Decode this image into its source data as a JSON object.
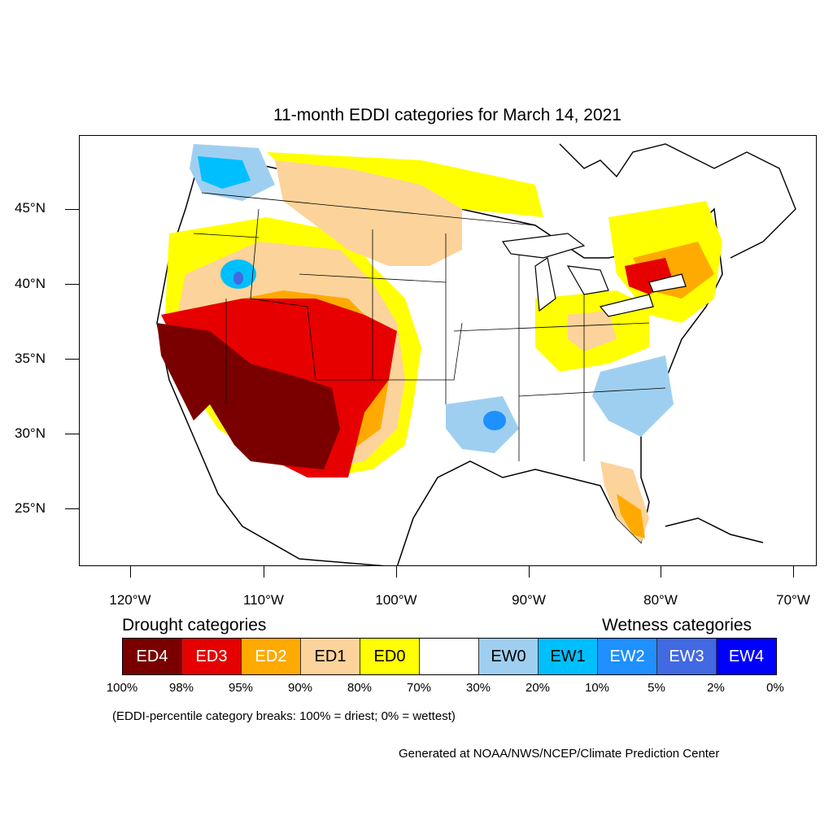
{
  "title": "11-month EDDI categories for March 14, 2021",
  "latitude_labels": [
    "45°N",
    "40°N",
    "35°N",
    "30°N",
    "25°N"
  ],
  "longitude_labels": [
    "120°W",
    "110°W",
    "100°W",
    "90°W",
    "80°W",
    "70°W"
  ],
  "legend": {
    "drought_heading": "Drought categories",
    "wetness_heading": "Wetness categories",
    "categories": [
      {
        "label": "ED4",
        "color": "#7a0000",
        "text_color": "#ffffff"
      },
      {
        "label": "ED3",
        "color": "#e60000",
        "text_color": "#ffffff"
      },
      {
        "label": "ED2",
        "color": "#ffaa00",
        "text_color": "#ffffff"
      },
      {
        "label": "ED1",
        "color": "#fcd39a",
        "text_color": "#000000"
      },
      {
        "label": "ED0",
        "color": "#ffff00",
        "text_color": "#000000"
      },
      {
        "label": "",
        "color": "#ffffff",
        "text_color": "#000000"
      },
      {
        "label": "EW0",
        "color": "#9fcff0",
        "text_color": "#000000"
      },
      {
        "label": "EW1",
        "color": "#00bfff",
        "text_color": "#000000"
      },
      {
        "label": "EW2",
        "color": "#1e90ff",
        "text_color": "#ffffff"
      },
      {
        "label": "EW3",
        "color": "#4169e1",
        "text_color": "#ffffff"
      },
      {
        "label": "EW4",
        "color": "#0000ff",
        "text_color": "#ffffff"
      }
    ],
    "percent_breaks": [
      "100%",
      "98%",
      "95%",
      "90%",
      "80%",
      "70%",
      "30%",
      "20%",
      "10%",
      "5%",
      "2%",
      "0%"
    ],
    "note": "(EDDI-percentile category breaks: 100% = driest; 0% = wettest)"
  },
  "credit": "Generated at NOAA/NWS/NCEP/Climate Prediction Center"
}
